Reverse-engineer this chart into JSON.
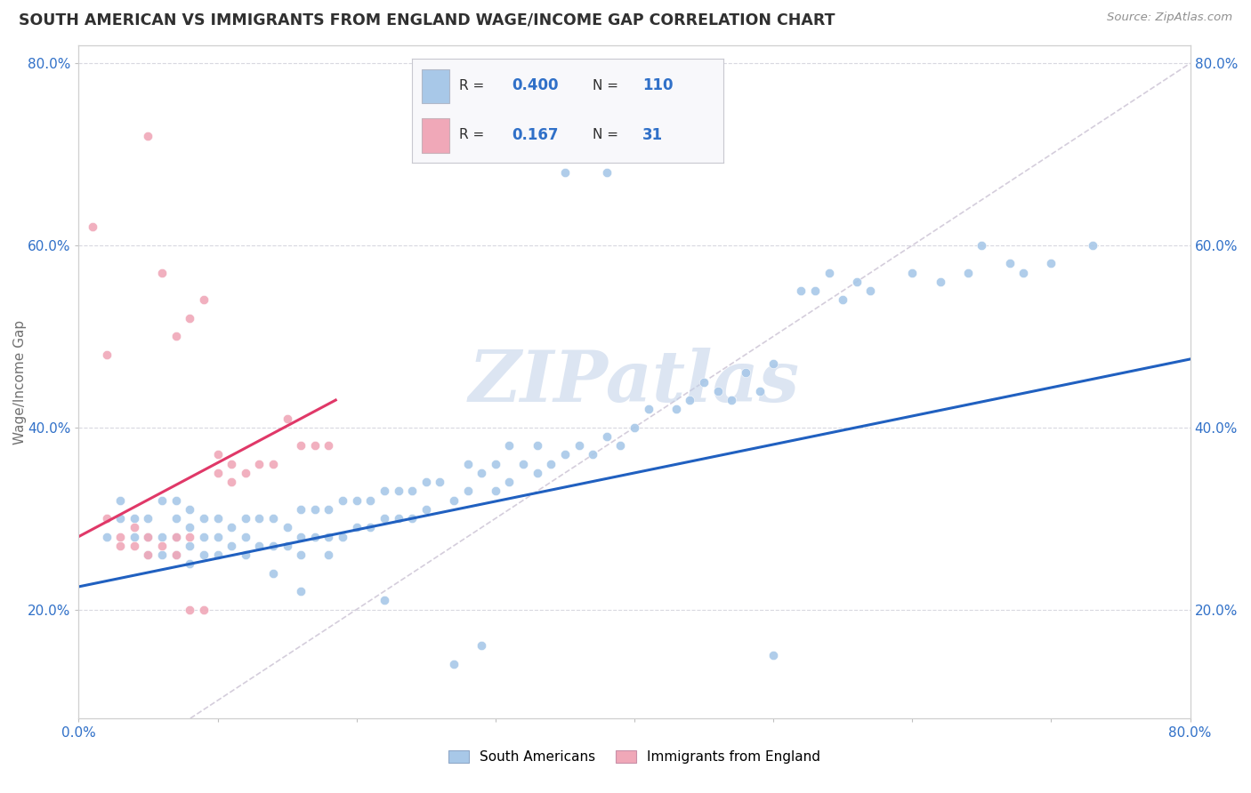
{
  "title": "SOUTH AMERICAN VS IMMIGRANTS FROM ENGLAND WAGE/INCOME GAP CORRELATION CHART",
  "source": "Source: ZipAtlas.com",
  "ylabel": "Wage/Income Gap",
  "xlim": [
    0.0,
    0.8
  ],
  "ylim": [
    0.08,
    0.82
  ],
  "xticks": [
    0.0,
    0.1,
    0.2,
    0.3,
    0.4,
    0.5,
    0.6,
    0.7,
    0.8
  ],
  "yticks": [
    0.2,
    0.4,
    0.6,
    0.8
  ],
  "ytick_labels": [
    "20.0%",
    "40.0%",
    "60.0%",
    "80.0%"
  ],
  "blue_color": "#a8c8e8",
  "pink_color": "#f0a8b8",
  "blue_line_color": "#2060c0",
  "pink_line_color": "#e03868",
  "diag_color": "#d0c8d8",
  "watermark": "ZIPatlas",
  "watermark_color": "#c0d0e8",
  "R_blue": "0.400",
  "N_blue": "110",
  "R_pink": "0.167",
  "N_pink": "31",
  "blue_trend_x0": 0.0,
  "blue_trend_y0": 0.225,
  "blue_trend_x1": 0.8,
  "blue_trend_y1": 0.475,
  "pink_trend_x0": 0.0,
  "pink_trend_y0": 0.28,
  "pink_trend_x1": 0.185,
  "pink_trend_y1": 0.43,
  "background_color": "#ffffff",
  "title_color": "#303030",
  "axis_label_color": "#707070",
  "tick_color": "#3070c8",
  "grid_color": "#d8d8e0",
  "blue_scatter_x": [
    0.02,
    0.03,
    0.03,
    0.04,
    0.04,
    0.05,
    0.05,
    0.05,
    0.06,
    0.06,
    0.06,
    0.07,
    0.07,
    0.07,
    0.07,
    0.08,
    0.08,
    0.08,
    0.08,
    0.09,
    0.09,
    0.09,
    0.1,
    0.1,
    0.1,
    0.11,
    0.11,
    0.12,
    0.12,
    0.12,
    0.13,
    0.13,
    0.14,
    0.14,
    0.15,
    0.15,
    0.16,
    0.16,
    0.16,
    0.17,
    0.17,
    0.18,
    0.18,
    0.19,
    0.19,
    0.2,
    0.2,
    0.21,
    0.21,
    0.22,
    0.22,
    0.23,
    0.23,
    0.24,
    0.24,
    0.25,
    0.25,
    0.26,
    0.27,
    0.28,
    0.28,
    0.29,
    0.3,
    0.3,
    0.31,
    0.31,
    0.32,
    0.33,
    0.33,
    0.34,
    0.35,
    0.36,
    0.37,
    0.38,
    0.39,
    0.4,
    0.41,
    0.43,
    0.44,
    0.45,
    0.46,
    0.47,
    0.48,
    0.49,
    0.5,
    0.5,
    0.52,
    0.53,
    0.54,
    0.55,
    0.56,
    0.57,
    0.6,
    0.62,
    0.64,
    0.65,
    0.67,
    0.68,
    0.7,
    0.73,
    0.35,
    0.36,
    0.38,
    0.4,
    0.27,
    0.29,
    0.22,
    0.14,
    0.16,
    0.18
  ],
  "blue_scatter_y": [
    0.28,
    0.3,
    0.32,
    0.28,
    0.3,
    0.28,
    0.3,
    0.26,
    0.26,
    0.28,
    0.32,
    0.26,
    0.28,
    0.3,
    0.32,
    0.25,
    0.27,
    0.29,
    0.31,
    0.26,
    0.28,
    0.3,
    0.26,
    0.28,
    0.3,
    0.27,
    0.29,
    0.26,
    0.28,
    0.3,
    0.27,
    0.3,
    0.27,
    0.3,
    0.27,
    0.29,
    0.26,
    0.28,
    0.31,
    0.28,
    0.31,
    0.28,
    0.31,
    0.28,
    0.32,
    0.29,
    0.32,
    0.29,
    0.32,
    0.3,
    0.33,
    0.3,
    0.33,
    0.3,
    0.33,
    0.31,
    0.34,
    0.34,
    0.32,
    0.33,
    0.36,
    0.35,
    0.33,
    0.36,
    0.34,
    0.38,
    0.36,
    0.35,
    0.38,
    0.36,
    0.37,
    0.38,
    0.37,
    0.39,
    0.38,
    0.4,
    0.42,
    0.42,
    0.43,
    0.45,
    0.44,
    0.43,
    0.46,
    0.44,
    0.47,
    0.15,
    0.55,
    0.55,
    0.57,
    0.54,
    0.56,
    0.55,
    0.57,
    0.56,
    0.57,
    0.6,
    0.58,
    0.57,
    0.58,
    0.6,
    0.68,
    0.7,
    0.68,
    0.72,
    0.14,
    0.16,
    0.21,
    0.24,
    0.22,
    0.26
  ],
  "pink_scatter_x": [
    0.01,
    0.02,
    0.03,
    0.03,
    0.04,
    0.04,
    0.05,
    0.05,
    0.06,
    0.07,
    0.07,
    0.08,
    0.08,
    0.09,
    0.1,
    0.11,
    0.12,
    0.13,
    0.14,
    0.15,
    0.16,
    0.17,
    0.18,
    0.05,
    0.06,
    0.07,
    0.08,
    0.09,
    0.1,
    0.11,
    0.02
  ],
  "pink_scatter_y": [
    0.62,
    0.48,
    0.27,
    0.28,
    0.27,
    0.29,
    0.28,
    0.26,
    0.27,
    0.28,
    0.26,
    0.28,
    0.2,
    0.2,
    0.37,
    0.36,
    0.35,
    0.36,
    0.36,
    0.41,
    0.38,
    0.38,
    0.38,
    0.72,
    0.57,
    0.5,
    0.52,
    0.54,
    0.35,
    0.34,
    0.3
  ]
}
